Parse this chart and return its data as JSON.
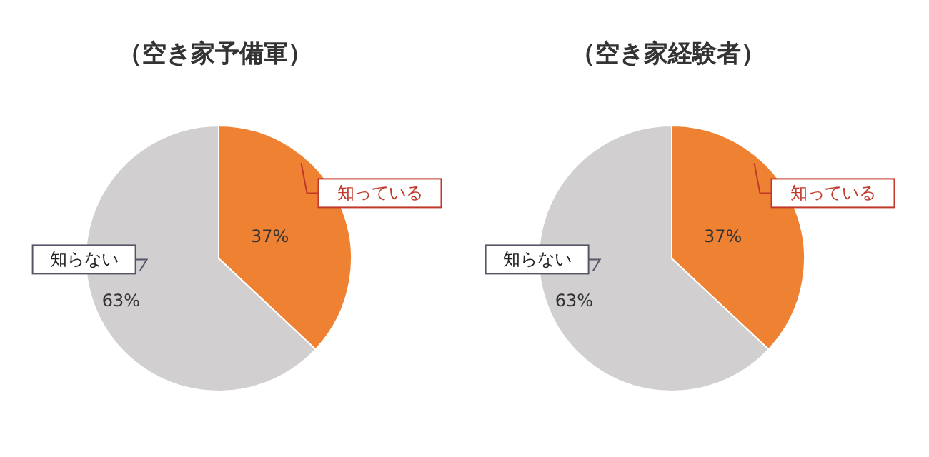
{
  "chart_data": [
    {
      "type": "pie",
      "title": "（空き家予備軍）",
      "categories": [
        "知っている",
        "知らない"
      ],
      "values": [
        37,
        63
      ],
      "colors": [
        "#ef8232",
        "#d1cfcf"
      ],
      "value_labels": [
        "37%",
        "63%"
      ]
    },
    {
      "type": "pie",
      "title": "（空き家経験者）",
      "categories": [
        "知っている",
        "知らない"
      ],
      "values": [
        37,
        63
      ],
      "colors": [
        "#ef8232",
        "#d1cfcf"
      ],
      "value_labels": [
        "37%",
        "63%"
      ]
    }
  ]
}
